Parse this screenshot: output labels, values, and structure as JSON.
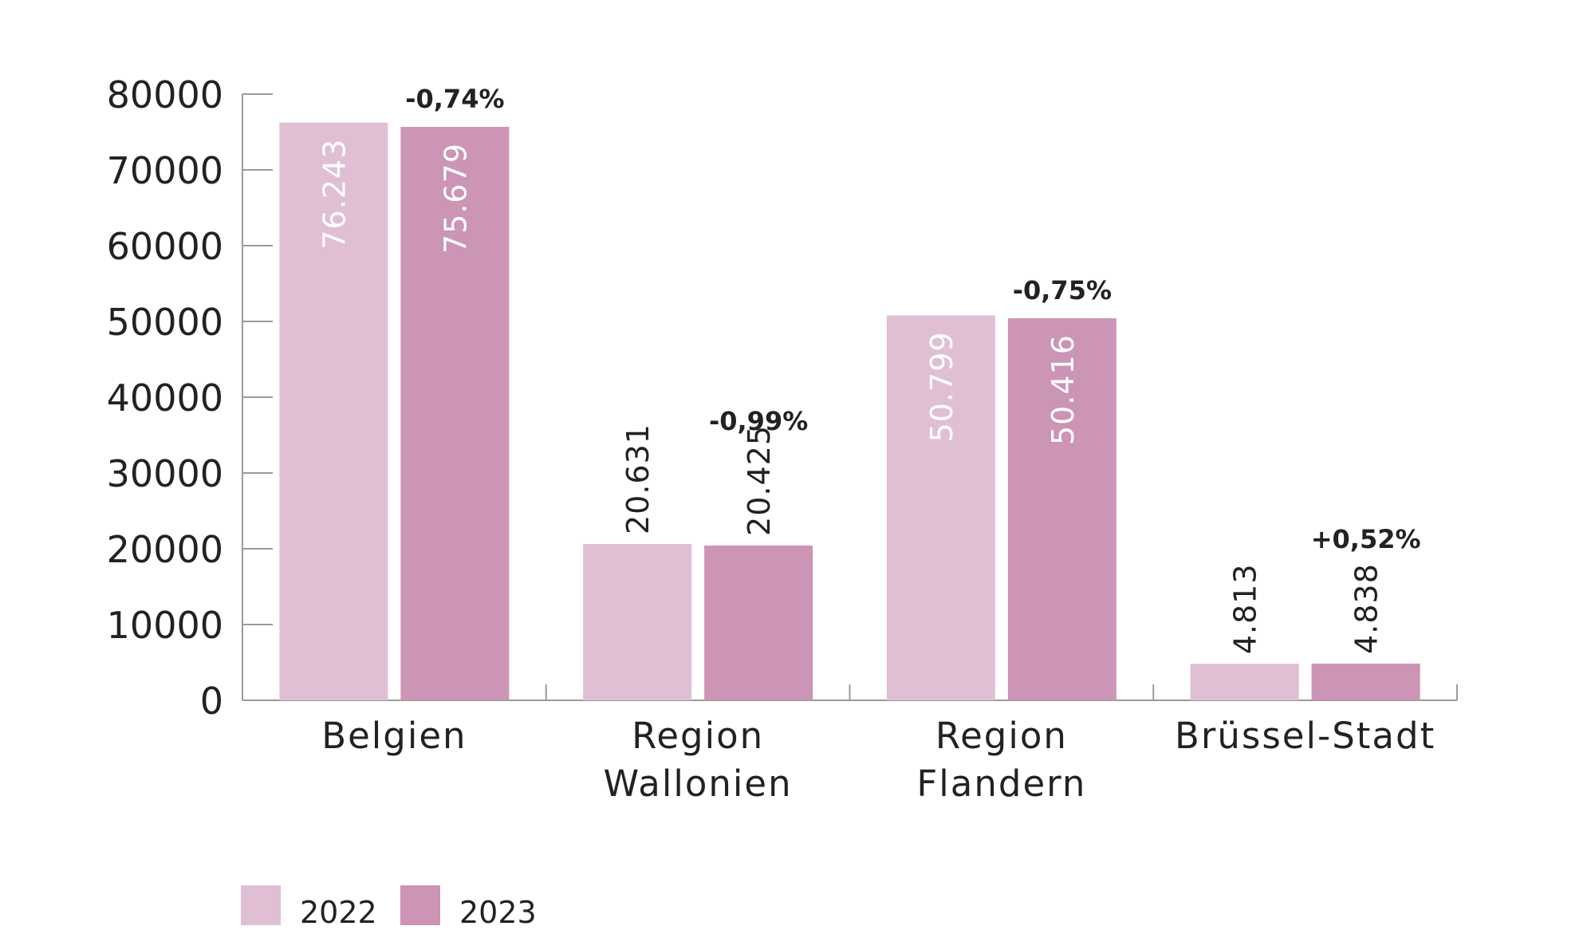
{
  "chart_data": {
    "type": "bar",
    "title": "",
    "xlabel": "",
    "ylabel": "",
    "ylim": [
      0,
      80000
    ],
    "yticks": [
      0,
      10000,
      20000,
      30000,
      40000,
      50000,
      60000,
      70000,
      80000
    ],
    "grid": false,
    "legend_position": "bottom-left",
    "categories": [
      [
        "Belgien"
      ],
      [
        "Region",
        "Wallonien"
      ],
      [
        "Region",
        "Flandern"
      ],
      [
        "Brüssel-Stadt"
      ]
    ],
    "series": [
      {
        "name": "2022",
        "color": "#e0bfd4",
        "values": [
          76243,
          20631,
          50799,
          4813
        ],
        "labels": [
          "76.243",
          "20.631",
          "50.799",
          "4.813"
        ]
      },
      {
        "name": "2023",
        "color": "#cc94b5",
        "values": [
          75679,
          20425,
          50416,
          4838
        ],
        "labels": [
          "75.679",
          "20.425",
          "50.416",
          "4.838"
        ]
      }
    ],
    "changes": [
      "-0,74%",
      "-0,99%",
      "-0,75%",
      "+0,52%"
    ]
  }
}
